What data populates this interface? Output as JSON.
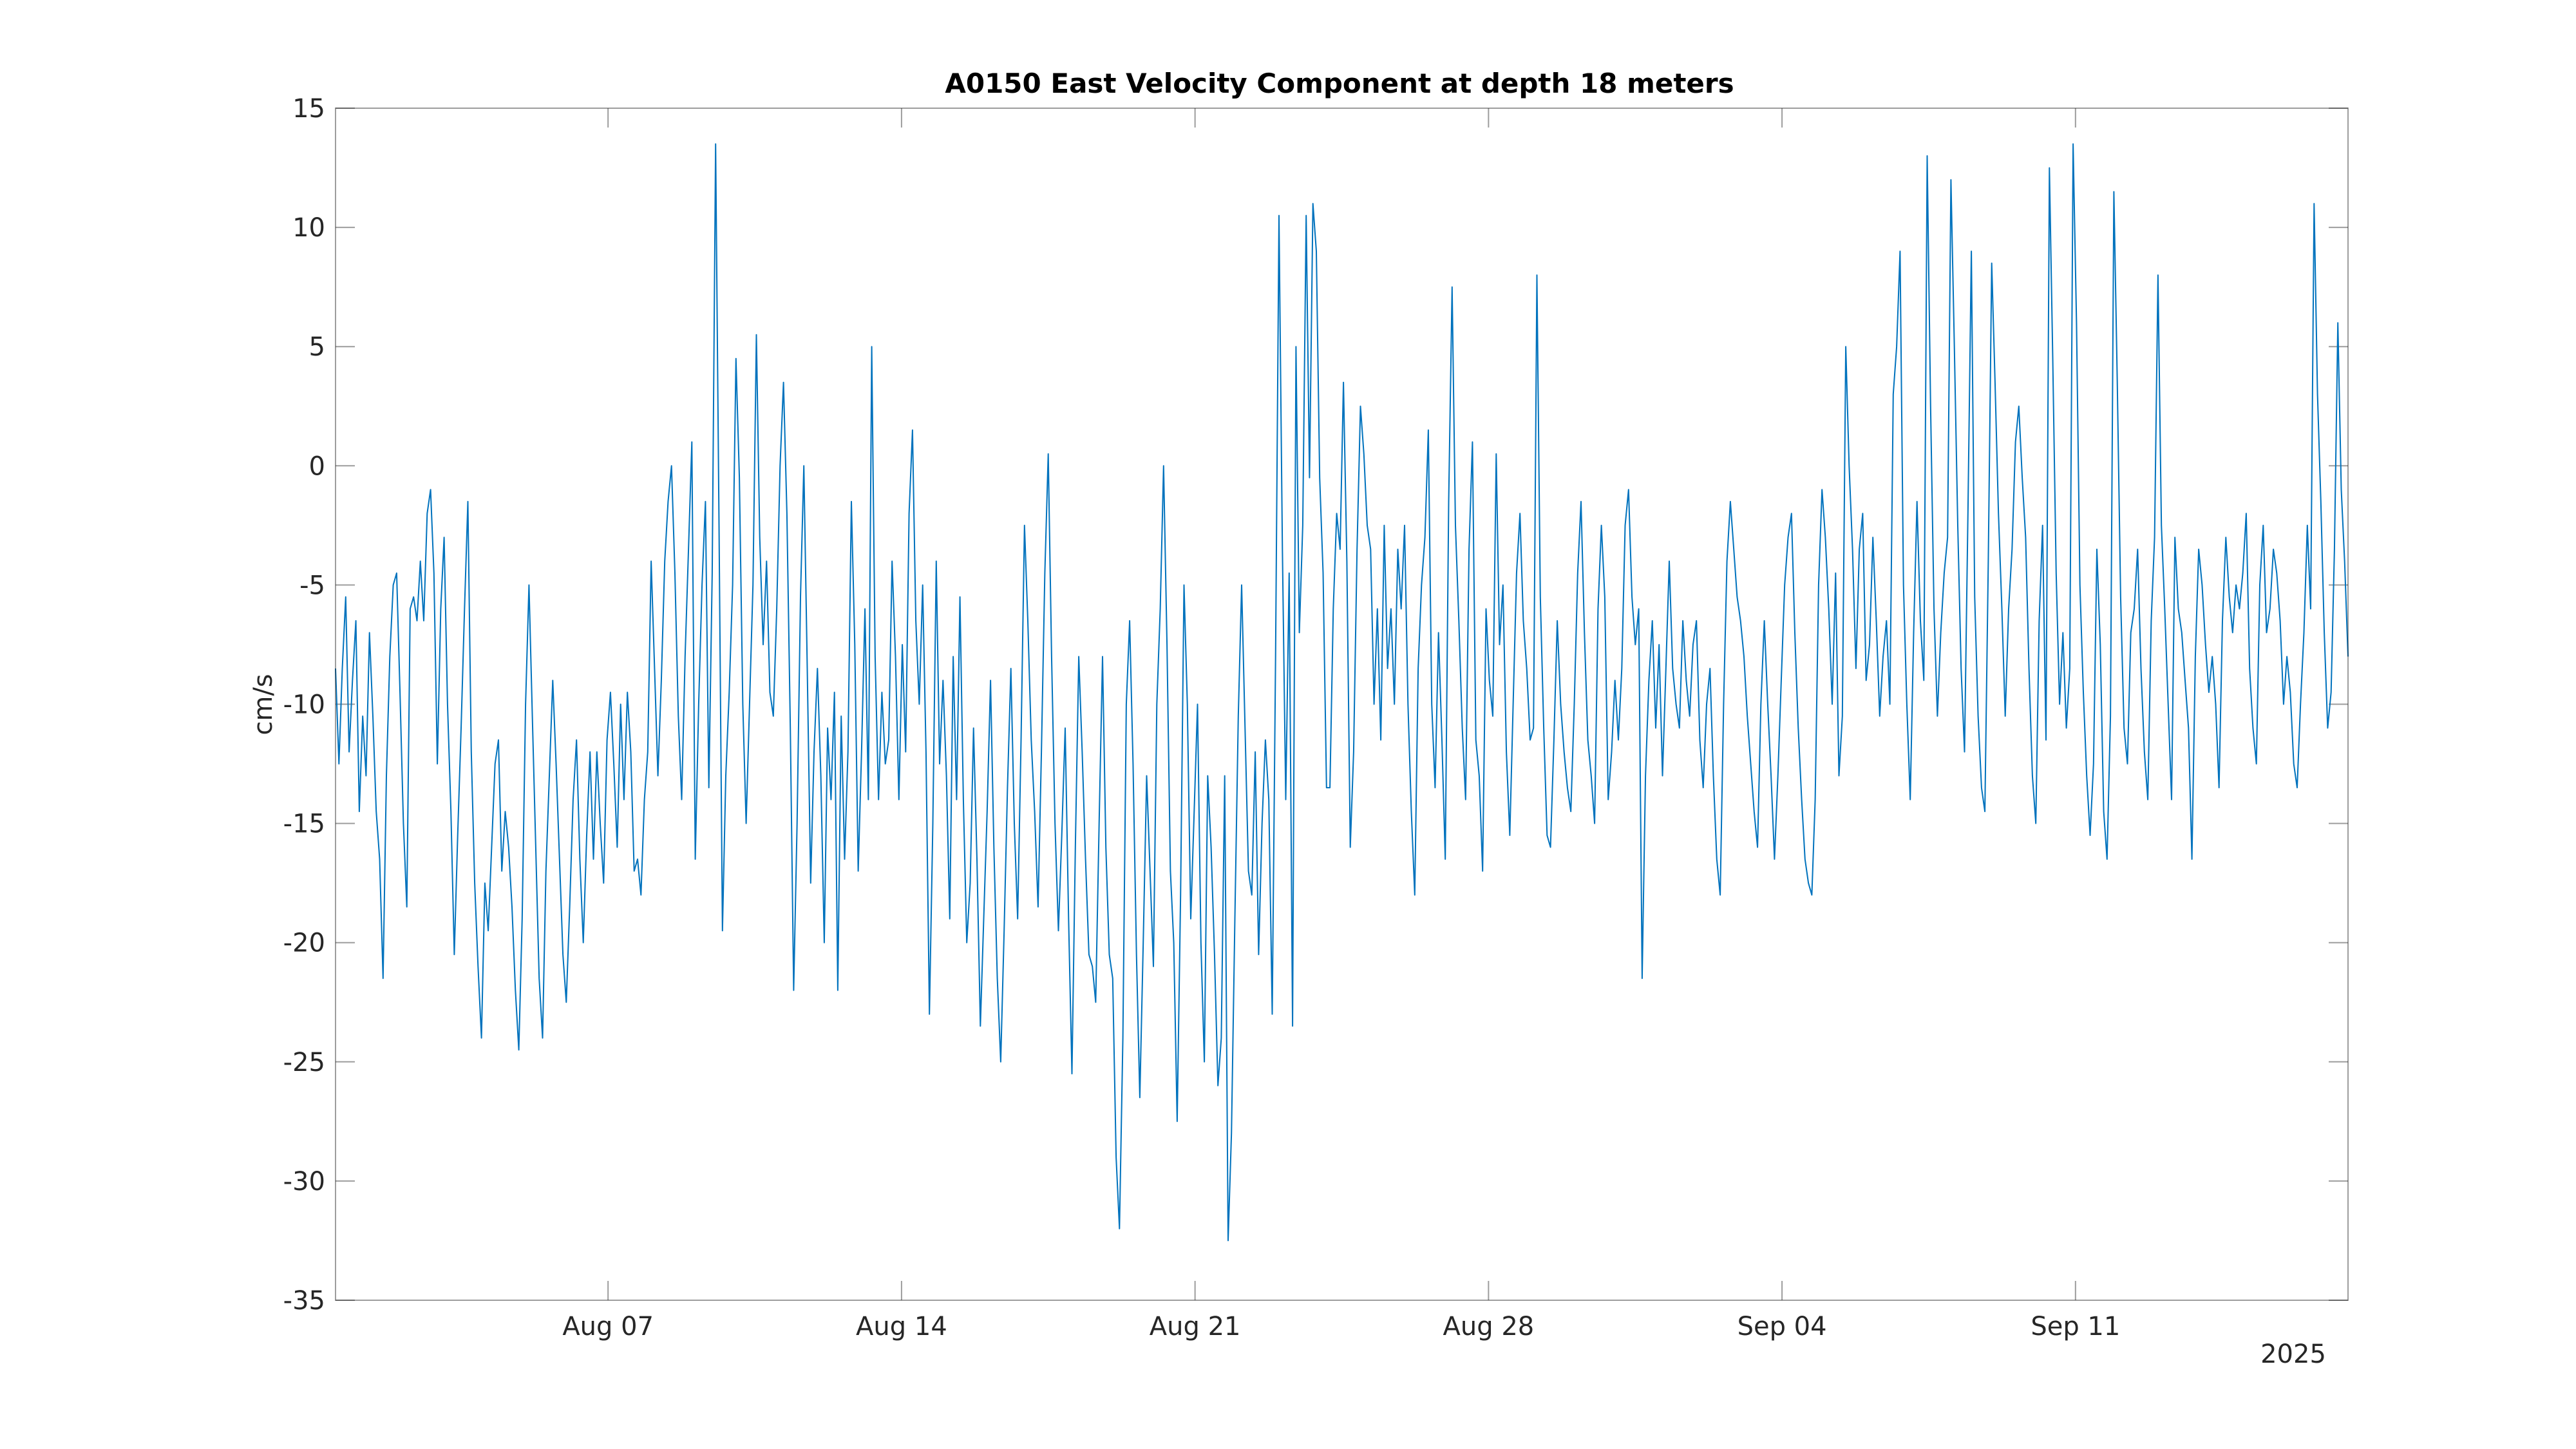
{
  "chart_data": {
    "type": "line",
    "title": "A0150 East Velocity Component at depth 18 meters",
    "xlabel": "",
    "ylabel": "cm/s",
    "x_range": [
      "2025-07-31T12:00",
      "2025-09-17T12:00"
    ],
    "ylim": [
      -35,
      15
    ],
    "yticks": [
      15,
      10,
      5,
      0,
      -5,
      -10,
      -15,
      -20,
      -25,
      -30,
      -35
    ],
    "xticks": [
      {
        "date": "2025-08-07",
        "label": "Aug 07"
      },
      {
        "date": "2025-08-14",
        "label": "Aug 14"
      },
      {
        "date": "2025-08-21",
        "label": "Aug 21"
      },
      {
        "date": "2025-08-28",
        "label": "Aug 28"
      },
      {
        "date": "2025-09-04",
        "label": "Sep 04"
      },
      {
        "date": "2025-09-11",
        "label": "Sep 11"
      }
    ],
    "year_label": "2025",
    "grid": false,
    "line_color": "#0072BD",
    "series": [
      {
        "x_start": "2025-07-31T12:00",
        "x_end": "2025-09-17T12:00",
        "values": [
          -8.5,
          -12.5,
          -8.5,
          -5.5,
          -12.0,
          -9.0,
          -6.5,
          -14.5,
          -10.5,
          -13.0,
          -7.0,
          -10.5,
          -14.5,
          -16.5,
          -21.5,
          -13.0,
          -8.0,
          -5.0,
          -4.5,
          -9.5,
          -15.0,
          -18.5,
          -6.0,
          -5.5,
          -6.5,
          -4.0,
          -6.5,
          -2.0,
          -1.0,
          -4.5,
          -12.5,
          -6.0,
          -3.0,
          -10.0,
          -14.5,
          -20.5,
          -15.5,
          -11.0,
          -6.0,
          -1.5,
          -12.0,
          -17.5,
          -21.0,
          -24.0,
          -17.5,
          -19.5,
          -16.0,
          -12.5,
          -11.5,
          -17.0,
          -14.5,
          -16.0,
          -18.5,
          -22.0,
          -24.5,
          -19.0,
          -10.0,
          -5.0,
          -10.5,
          -16.0,
          -21.5,
          -24.0,
          -17.0,
          -13.0,
          -9.0,
          -12.5,
          -16.5,
          -20.5,
          -22.5,
          -18.5,
          -14.0,
          -11.5,
          -16.5,
          -20.0,
          -15.5,
          -12.0,
          -16.5,
          -12.0,
          -15.0,
          -17.5,
          -11.5,
          -9.5,
          -12.5,
          -16.0,
          -10.0,
          -14.0,
          -9.5,
          -12.0,
          -17.0,
          -16.5,
          -18.0,
          -14.0,
          -12.0,
          -4.0,
          -8.5,
          -13.0,
          -9.0,
          -4.0,
          -1.5,
          0.0,
          -4.5,
          -10.5,
          -14.0,
          -8.0,
          -3.5,
          1.0,
          -16.5,
          -10.0,
          -5.0,
          -1.5,
          -13.5,
          -4.5,
          13.5,
          -2.5,
          -19.5,
          -13.0,
          -9.5,
          -5.0,
          4.5,
          -0.5,
          -10.0,
          -15.0,
          -10.0,
          -5.0,
          5.5,
          -3.0,
          -7.5,
          -4.0,
          -9.5,
          -10.5,
          -6.0,
          0.0,
          3.5,
          -2.0,
          -11.0,
          -22.0,
          -15.0,
          -5.5,
          0.0,
          -8.5,
          -17.5,
          -12.0,
          -8.5,
          -13.0,
          -20.0,
          -11.0,
          -14.0,
          -9.5,
          -22.0,
          -10.5,
          -16.5,
          -12.0,
          -1.5,
          -7.5,
          -17.0,
          -12.0,
          -6.0,
          -14.0,
          5.0,
          -8.0,
          -14.0,
          -9.5,
          -12.5,
          -11.5,
          -4.0,
          -8.0,
          -14.0,
          -7.5,
          -12.0,
          -2.0,
          1.5,
          -6.5,
          -10.0,
          -5.0,
          -12.0,
          -23.0,
          -15.0,
          -4.0,
          -12.5,
          -9.0,
          -13.0,
          -19.0,
          -8.0,
          -14.0,
          -5.5,
          -14.0,
          -20.0,
          -17.5,
          -11.0,
          -16.5,
          -23.5,
          -19.0,
          -14.5,
          -9.0,
          -16.0,
          -21.5,
          -25.0,
          -19.5,
          -13.5,
          -8.5,
          -15.0,
          -19.0,
          -11.5,
          -2.5,
          -6.5,
          -11.5,
          -14.5,
          -18.5,
          -12.0,
          -4.5,
          0.5,
          -8.0,
          -15.0,
          -19.5,
          -15.5,
          -11.0,
          -19.0,
          -25.5,
          -16.0,
          -8.0,
          -12.0,
          -16.5,
          -20.5,
          -21.0,
          -22.5,
          -15.0,
          -8.0,
          -16.0,
          -20.5,
          -21.5,
          -29.0,
          -32.0,
          -24.0,
          -10.0,
          -6.5,
          -12.5,
          -20.5,
          -26.5,
          -20.0,
          -13.0,
          -17.0,
          -21.0,
          -10.0,
          -6.0,
          0.0,
          -7.5,
          -17.0,
          -20.0,
          -27.5,
          -18.0,
          -5.0,
          -10.0,
          -19.0,
          -14.5,
          -10.0,
          -20.0,
          -25.0,
          -13.0,
          -16.0,
          -20.5,
          -26.0,
          -24.0,
          -13.0,
          -32.5,
          -28.0,
          -19.0,
          -10.5,
          -5.0,
          -11.0,
          -17.0,
          -18.0,
          -12.0,
          -20.5,
          -15.0,
          -11.5,
          -14.0,
          -23.0,
          -8.0,
          10.5,
          -3.5,
          -14.0,
          -4.5,
          -23.5,
          5.0,
          -7.0,
          -2.5,
          10.5,
          -0.5,
          11.0,
          9.0,
          -0.5,
          -4.5,
          -13.5,
          -13.5,
          -6.0,
          -2.0,
          -3.5,
          3.5,
          -4.0,
          -16.0,
          -12.0,
          -3.5,
          2.5,
          0.5,
          -2.5,
          -3.5,
          -10.0,
          -6.0,
          -11.5,
          -2.5,
          -8.5,
          -6.0,
          -10.0,
          -3.5,
          -6.0,
          -2.5,
          -10.0,
          -14.5,
          -18.0,
          -8.5,
          -5.0,
          -3.0,
          1.5,
          -10.0,
          -13.5,
          -7.0,
          -11.5,
          -16.5,
          -1.5,
          7.5,
          -2.5,
          -6.5,
          -11.0,
          -14.0,
          -3.5,
          1.0,
          -11.5,
          -13.0,
          -17.0,
          -6.0,
          -9.0,
          -10.5,
          0.5,
          -7.5,
          -5.0,
          -12.0,
          -15.5,
          -10.0,
          -4.5,
          -2.0,
          -6.5,
          -8.5,
          -11.5,
          -11.0,
          8.0,
          -5.5,
          -11.0,
          -15.5,
          -16.0,
          -11.5,
          -6.5,
          -10.0,
          -12.0,
          -13.5,
          -14.5,
          -10.0,
          -4.5,
          -1.5,
          -7.0,
          -11.5,
          -13.0,
          -15.0,
          -6.0,
          -2.5,
          -5.5,
          -14.0,
          -12.0,
          -9.0,
          -11.5,
          -8.5,
          -2.5,
          -1.0,
          -5.5,
          -7.5,
          -6.0,
          -21.5,
          -13.0,
          -9.0,
          -6.5,
          -11.0,
          -7.5,
          -13.0,
          -8.5,
          -4.0,
          -8.5,
          -10.0,
          -11.0,
          -6.5,
          -9.0,
          -10.5,
          -7.5,
          -6.5,
          -11.5,
          -13.5,
          -10.0,
          -8.5,
          -13.0,
          -16.5,
          -18.0,
          -10.0,
          -4.0,
          -1.5,
          -3.5,
          -5.5,
          -6.5,
          -8.0,
          -10.5,
          -12.5,
          -14.5,
          -16.0,
          -10.0,
          -6.5,
          -10.0,
          -13.0,
          -16.5,
          -13.0,
          -9.0,
          -5.0,
          -3.0,
          -2.0,
          -7.0,
          -11.0,
          -14.0,
          -16.5,
          -17.5,
          -18.0,
          -14.0,
          -5.0,
          -1.0,
          -3.0,
          -6.0,
          -10.0,
          -4.5,
          -13.0,
          -10.5,
          5.0,
          0.0,
          -3.5,
          -8.5,
          -3.5,
          -2.0,
          -9.0,
          -7.5,
          -3.0,
          -6.5,
          -10.5,
          -8.0,
          -6.5,
          -10.0,
          3.0,
          5.0,
          9.0,
          -5.0,
          -10.0,
          -14.0,
          -7.0,
          -1.5,
          -6.5,
          -9.0,
          13.0,
          2.5,
          -6.0,
          -10.5,
          -7.0,
          -4.5,
          -3.0,
          12.0,
          5.0,
          -2.5,
          -8.5,
          -12.0,
          -2.0,
          9.0,
          -5.5,
          -10.5,
          -13.5,
          -14.5,
          -4.0,
          8.5,
          3.5,
          -2.0,
          -6.0,
          -10.5,
          -6.0,
          -3.5,
          1.0,
          2.5,
          -0.5,
          -3.0,
          -8.5,
          -13.0,
          -15.0,
          -6.5,
          -2.5,
          -11.5,
          12.5,
          4.5,
          -4.5,
          -10.0,
          -7.0,
          -11.0,
          -8.5,
          13.5,
          6.0,
          -5.0,
          -9.5,
          -13.0,
          -15.5,
          -12.5,
          -3.5,
          -7.5,
          -14.5,
          -16.5,
          -10.5,
          11.5,
          3.5,
          -5.5,
          -11.0,
          -12.5,
          -7.0,
          -6.0,
          -3.5,
          -8.5,
          -12.0,
          -14.0,
          -6.5,
          -3.0,
          8.0,
          -2.5,
          -6.0,
          -10.0,
          -14.0,
          -3.0,
          -6.0,
          -7.0,
          -9.0,
          -11.0,
          -16.5,
          -8.0,
          -3.5,
          -5.0,
          -7.5,
          -9.5,
          -8.0,
          -10.0,
          -13.5,
          -6.5,
          -3.0,
          -5.5,
          -7.0,
          -5.0,
          -6.0,
          -4.5,
          -2.0,
          -8.5,
          -11.0,
          -12.5,
          -5.0,
          -2.5,
          -7.0,
          -6.0,
          -3.5,
          -4.5,
          -6.5,
          -10.0,
          -8.0,
          -9.5,
          -12.5,
          -13.5,
          -10.0,
          -7.0,
          -2.5,
          -6.0,
          11.0,
          3.0,
          -1.5,
          -7.0,
          -11.0,
          -9.5,
          -3.5,
          6.0,
          -1.0,
          -4.0,
          -8.0
        ]
      }
    ]
  }
}
